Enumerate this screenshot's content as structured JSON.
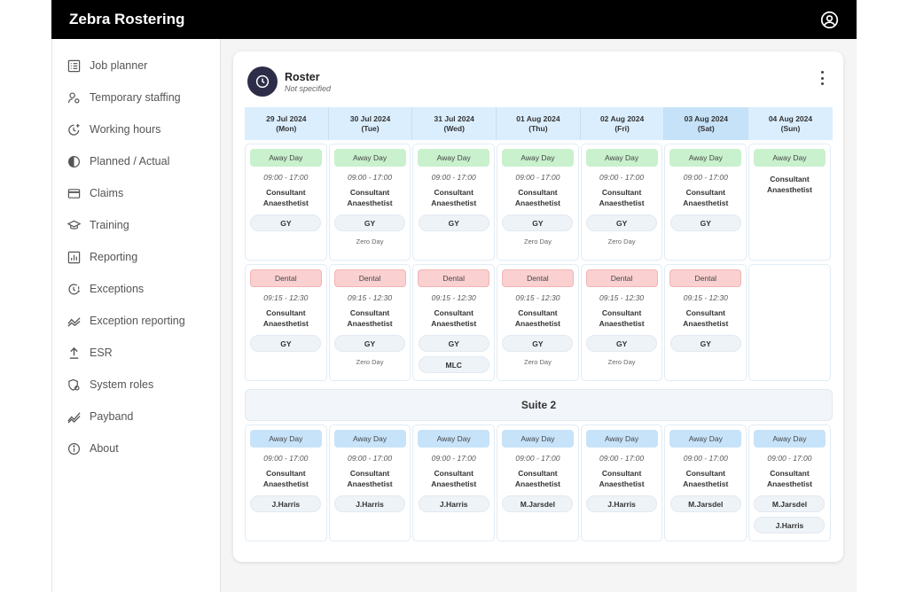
{
  "app": {
    "title": "Zebra Rostering",
    "user_icon": "user-circle-icon"
  },
  "sidebar": {
    "items": [
      {
        "label": "Job planner",
        "icon": "calendar-list-icon"
      },
      {
        "label": "Temporary staffing",
        "icon": "user-gear-icon"
      },
      {
        "label": "Working hours",
        "icon": "clock-plus-icon"
      },
      {
        "label": "Planned / Actual",
        "icon": "half-circle-icon"
      },
      {
        "label": "Claims",
        "icon": "credit-card-icon"
      },
      {
        "label": "Training",
        "icon": "graduation-cap-icon"
      },
      {
        "label": "Reporting",
        "icon": "bar-chart-icon"
      },
      {
        "label": "Exceptions",
        "icon": "clock-alert-icon"
      },
      {
        "label": "Exception reporting",
        "icon": "trend-icon"
      },
      {
        "label": "ESR",
        "icon": "upload-icon"
      },
      {
        "label": "System roles",
        "icon": "shield-gear-icon"
      },
      {
        "label": "Payband",
        "icon": "chart-line-icon"
      },
      {
        "label": "About",
        "icon": "info-icon"
      }
    ]
  },
  "roster": {
    "title": "Roster",
    "subtitle": "Not specified",
    "days": [
      {
        "date": "29 Jul 2024",
        "weekday": "(Mon)"
      },
      {
        "date": "30 Jul 2024",
        "weekday": "(Tue)"
      },
      {
        "date": "31 Jul 2024",
        "weekday": "(Wed)"
      },
      {
        "date": "01 Aug 2024",
        "weekday": "(Thu)"
      },
      {
        "date": "02 Aug 2024",
        "weekday": "(Fri)"
      },
      {
        "date": "03 Aug 2024",
        "weekday": "(Sat)"
      },
      {
        "date": "04 Aug 2024",
        "weekday": "(Sun)"
      }
    ],
    "suite_label": "Suite 2",
    "rows": [
      [
        {
          "tag": "Away Day",
          "color": "green",
          "time": "09:00 - 17:00",
          "role1": "Consultant",
          "role2": "Anaesthetist",
          "pills": [
            "GY"
          ],
          "note": ""
        },
        {
          "tag": "Away Day",
          "color": "green",
          "time": "09:00 - 17:00",
          "role1": "Consultant",
          "role2": "Anaesthetist",
          "pills": [
            "GY"
          ],
          "note": "Zero Day"
        },
        {
          "tag": "Away Day",
          "color": "green",
          "time": "09:00 - 17:00",
          "role1": "Consultant",
          "role2": "Anaesthetist",
          "pills": [
            "GY"
          ],
          "note": ""
        },
        {
          "tag": "Away Day",
          "color": "green",
          "time": "09:00 - 17:00",
          "role1": "Consultant",
          "role2": "Anaesthetist",
          "pills": [
            "GY"
          ],
          "note": "Zero Day"
        },
        {
          "tag": "Away Day",
          "color": "green",
          "time": "09:00 - 17:00",
          "role1": "Consultant",
          "role2": "Anaesthetist",
          "pills": [
            "GY"
          ],
          "note": "Zero Day"
        },
        {
          "tag": "Away Day",
          "color": "green",
          "time": "09:00 - 17:00",
          "role1": "Consultant",
          "role2": "Anaesthetist",
          "pills": [
            "GY"
          ],
          "note": ""
        },
        {
          "tag": "Away Day",
          "color": "green",
          "time": "",
          "role1": "Consultant",
          "role2": "Anaesthetist",
          "pills": [],
          "note": ""
        }
      ],
      [
        {
          "tag": "Dental",
          "color": "red",
          "time": "09:15 - 12:30",
          "role1": "Consultant",
          "role2": "Anaesthetist",
          "pills": [
            "GY"
          ],
          "note": ""
        },
        {
          "tag": "Dental",
          "color": "red",
          "time": "09:15 - 12:30",
          "role1": "Consultant",
          "role2": "Anaesthetist",
          "pills": [
            "GY"
          ],
          "note": "Zero Day"
        },
        {
          "tag": "Dental",
          "color": "red",
          "time": "09:15 - 12:30",
          "role1": "Consultant",
          "role2": "Anaesthetist",
          "pills": [
            "GY",
            "MLC"
          ],
          "note": ""
        },
        {
          "tag": "Dental",
          "color": "red",
          "time": "09:15 - 12:30",
          "role1": "Consultant",
          "role2": "Anaesthetist",
          "pills": [
            "GY"
          ],
          "note": "Zero Day"
        },
        {
          "tag": "Dental",
          "color": "red",
          "time": "09:15 - 12:30",
          "role1": "Consultant",
          "role2": "Anaesthetist",
          "pills": [
            "GY"
          ],
          "note": "Zero Day"
        },
        {
          "tag": "Dental",
          "color": "red",
          "time": "09:15 - 12:30",
          "role1": "Consultant",
          "role2": "Anaesthetist",
          "pills": [
            "GY"
          ],
          "note": ""
        },
        null
      ],
      [
        {
          "tag": "Away Day",
          "color": "blue",
          "time": "09:00 - 17:00",
          "role1": "Consultant",
          "role2": "Anaesthetist",
          "pills": [
            "J.Harris"
          ],
          "note": ""
        },
        {
          "tag": "Away Day",
          "color": "blue",
          "time": "09:00 - 17:00",
          "role1": "Consultant",
          "role2": "Anaesthetist",
          "pills": [
            "J.Harris"
          ],
          "note": ""
        },
        {
          "tag": "Away Day",
          "color": "blue",
          "time": "09:00 - 17:00",
          "role1": "Consultant",
          "role2": "Anaesthetist",
          "pills": [
            "J.Harris"
          ],
          "note": ""
        },
        {
          "tag": "Away Day",
          "color": "blue",
          "time": "09:00 - 17:00",
          "role1": "Consultant",
          "role2": "Anaesthetist",
          "pills": [
            "M.Jarsdel"
          ],
          "note": ""
        },
        {
          "tag": "Away Day",
          "color": "blue",
          "time": "09:00 - 17:00",
          "role1": "Consultant",
          "role2": "Anaesthetist",
          "pills": [
            "J.Harris"
          ],
          "note": ""
        },
        {
          "tag": "Away Day",
          "color": "blue",
          "time": "09:00 - 17:00",
          "role1": "Consultant",
          "role2": "Anaesthetist",
          "pills": [
            "M.Jarsdel"
          ],
          "note": ""
        },
        {
          "tag": "Away Day",
          "color": "blue",
          "time": "09:00 - 17:00",
          "role1": "Consultant",
          "role2": "Anaesthetist",
          "pills": [
            "M.Jarsdel",
            "J.Harris"
          ],
          "note": ""
        }
      ]
    ]
  }
}
